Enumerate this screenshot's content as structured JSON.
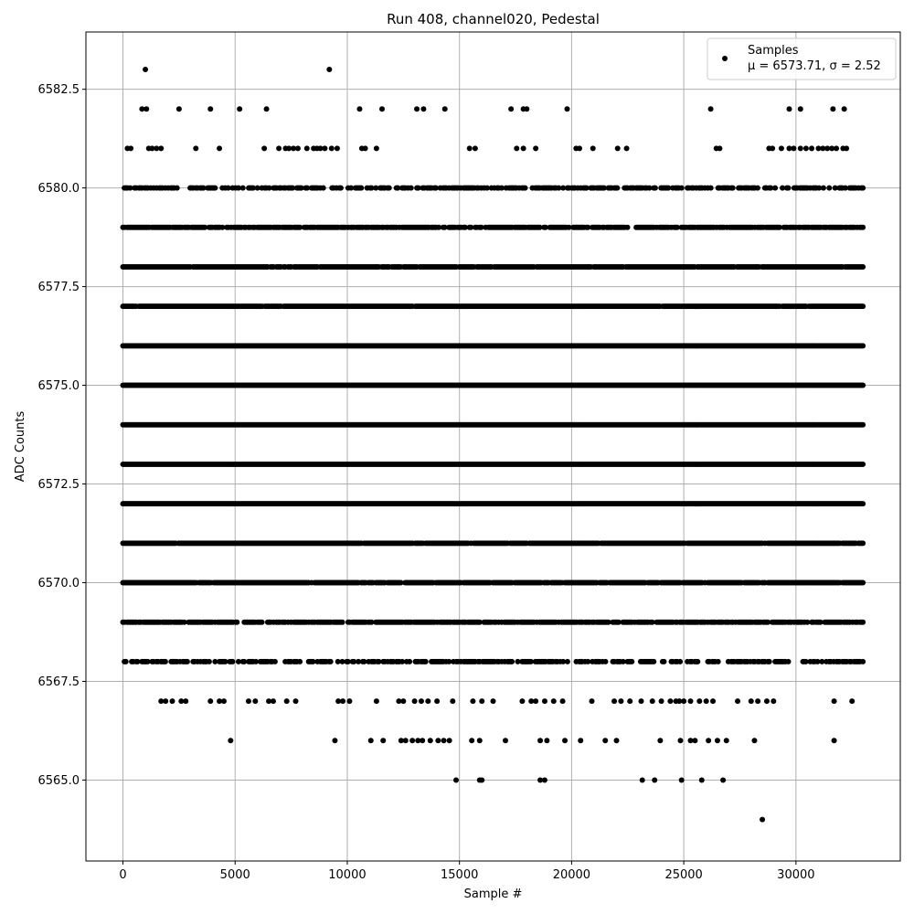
{
  "chart_data": {
    "type": "scatter",
    "title": "Run 408, channel020, Pedestal",
    "xlabel": "Sample #",
    "ylabel": "ADC Counts",
    "xlim": [
      -1650,
      34650
    ],
    "ylim": [
      6562.95,
      6583.95
    ],
    "xticks": [
      0,
      5000,
      10000,
      15000,
      20000,
      25000,
      30000
    ],
    "xtick_labels": [
      "0",
      "5000",
      "10000",
      "15000",
      "20000",
      "25000",
      "30000"
    ],
    "yticks": [
      6565.0,
      6567.5,
      6570.0,
      6572.5,
      6575.0,
      6577.5,
      6580.0,
      6582.5
    ],
    "ytick_labels": [
      "6565.0",
      "6567.5",
      "6570.0",
      "6572.5",
      "6575.0",
      "6577.5",
      "6580.0",
      "6582.5"
    ],
    "grid": true,
    "legend_position": "top-right",
    "series": [
      {
        "name": "Samples",
        "stats_label": "μ = 6573.71, σ = 2.52",
        "color": "#000000",
        "x_range": [
          0,
          33000
        ],
        "bands": [
          {
            "y": 6564,
            "x": [
              28500
            ]
          },
          {
            "y": 6565,
            "x": [
              14850,
              15900,
              16000,
              18600,
              18800,
              23150,
              23700,
              24900,
              25800,
              26750
            ]
          },
          {
            "y": 6566,
            "x": [
              4800,
              9450,
              11050,
              11600,
              12400,
              12600,
              12900,
              13150,
              13350,
              13700,
              14050,
              14300,
              14550,
              15550,
              15900,
              17050,
              18600,
              18900,
              19700,
              20400,
              21500,
              22000,
              23950,
              24850,
              25300,
              25500,
              26100,
              26500,
              26900,
              28150,
              31700
            ]
          },
          {
            "y": 6567,
            "x": [
              1700,
              1900,
              2200,
              2600,
              2800,
              3900,
              4300,
              4500,
              5600,
              5900,
              6500,
              6700,
              7300,
              7700,
              9600,
              9800,
              10100,
              11300,
              12300,
              12500,
              13000,
              13300,
              13600,
              14000,
              14700,
              15600,
              16000,
              16500,
              17800,
              18200,
              18400,
              18800,
              19200,
              19600,
              20900,
              21900,
              22200,
              22600,
              23100,
              23600,
              24000,
              24400,
              24650,
              24800,
              25000,
              25300,
              25700,
              26000,
              26300,
              27400,
              28000,
              28300,
              28700,
              29000,
              31700,
              32500
            ]
          },
          {
            "y": 6568,
            "x": 0.6
          },
          {
            "y": 6569,
            "x": 0.8
          },
          {
            "y": 6570,
            "x": 0.94
          },
          {
            "y": 6571,
            "x": 0.98
          },
          {
            "y": 6572,
            "x": 1.0
          },
          {
            "y": 6573,
            "x": 1.0
          },
          {
            "y": 6574,
            "x": 1.0
          },
          {
            "y": 6575,
            "x": 1.0
          },
          {
            "y": 6576,
            "x": 1.0
          },
          {
            "y": 6577,
            "x": 0.99
          },
          {
            "y": 6578,
            "x": 0.96
          },
          {
            "y": 6579,
            "x": 0.82
          },
          {
            "y": 6580,
            "x": 0.55
          },
          {
            "y": 6581,
            "x": [
              200,
              350,
              1150,
              1300,
              1500,
              1700,
              3250,
              4300,
              6300,
              6950,
              7250,
              7400,
              7600,
              7800,
              8200,
              8500,
              8650,
              8800,
              9000,
              9300,
              9550,
              10650,
              10800,
              11300,
              15450,
              15700,
              17550,
              17850,
              18400,
              20200,
              20350,
              20950,
              22050,
              22450,
              26450,
              26600,
              28800,
              28950,
              29350,
              29700,
              29900,
              30200,
              30450,
              30700,
              31000,
              31200,
              31400,
              31600,
              31800,
              32100,
              32250
            ]
          },
          {
            "y": 6582,
            "x": [
              850,
              1050,
              2500,
              3900,
              5200,
              6400,
              10550,
              11550,
              13100,
              13400,
              14350,
              17300,
              17850,
              18000,
              19800,
              26200,
              29700,
              30200,
              31650,
              32150
            ]
          },
          {
            "y": 6583,
            "x": [
              1000,
              9200
            ]
          }
        ]
      }
    ]
  }
}
